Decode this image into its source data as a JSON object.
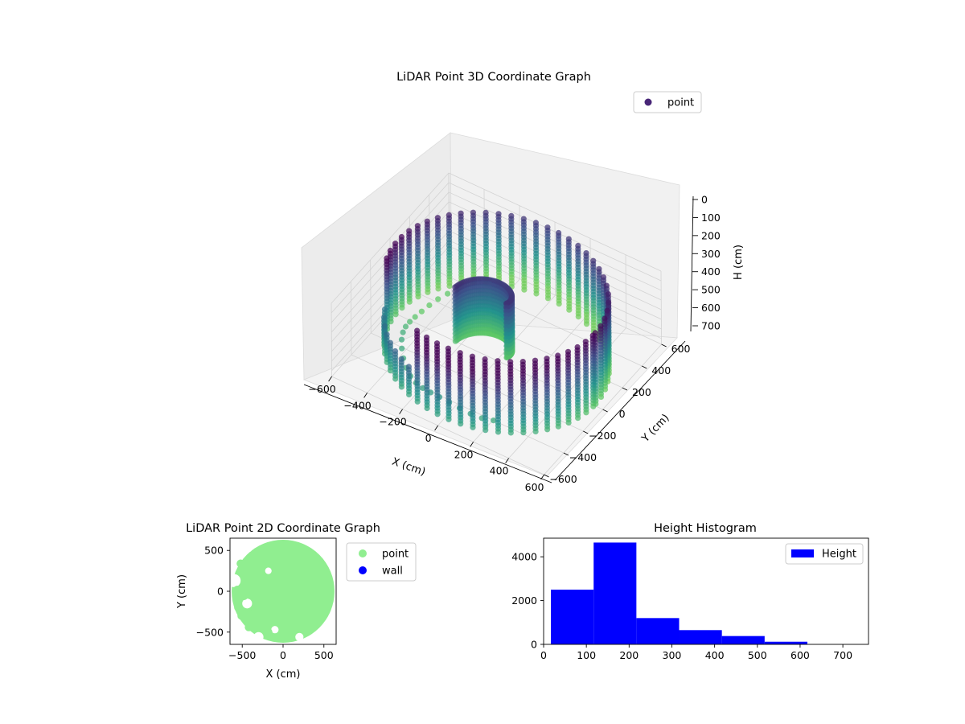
{
  "chart_data": [
    {
      "type": "scatter",
      "projection": "3d",
      "title": "LiDAR Point 3D Coordinate Graph",
      "xlabel": "X (cm)",
      "ylabel": "Y (cm)",
      "zlabel": "H (cm)",
      "xticks": [
        -600,
        -400,
        -200,
        0,
        200,
        400,
        600
      ],
      "yticks": [
        -600,
        -400,
        -200,
        0,
        200,
        400,
        600
      ],
      "zticks": [
        0,
        100,
        200,
        300,
        400,
        500,
        600,
        700
      ],
      "xlim": [
        -600,
        600
      ],
      "ylim": [
        -600,
        600
      ],
      "zlim": [
        0,
        760
      ],
      "z_inverted": true,
      "legend": {
        "placement": "top-right",
        "entries": [
          {
            "label": "point",
            "color": "#482677"
          }
        ]
      },
      "series": [
        {
          "name": "point",
          "colormap": "viridis",
          "ring_radius": 560,
          "ring_height_range": [
            0,
            760
          ],
          "inner_arc": {
            "radius_range": [
              50,
              220
            ],
            "height_range": [
              150,
              740
            ]
          }
        }
      ],
      "grid": true
    },
    {
      "type": "scatter",
      "title": "LiDAR Point 2D Coordinate Graph",
      "xlabel": "X (cm)",
      "ylabel": "Y (cm)",
      "xticks": [
        -500,
        0,
        500
      ],
      "yticks": [
        -500,
        0,
        500
      ],
      "xlim": [
        -650,
        650
      ],
      "ylim": [
        -650,
        650
      ],
      "legend": {
        "placement": "outside-right",
        "entries": [
          {
            "label": "point",
            "color": "#90ee90"
          },
          {
            "label": "wall",
            "color": "#0000ff"
          }
        ]
      },
      "series": [
        {
          "name": "point",
          "color": "#90ee90",
          "disk_radius": 630
        },
        {
          "name": "wall",
          "color": "#0000ff",
          "values": []
        }
      ]
    },
    {
      "type": "bar",
      "histogram": true,
      "title": "Height Histogram",
      "xlabel": "",
      "ylabel": "",
      "xticks": [
        0,
        100,
        200,
        300,
        400,
        500,
        600,
        700
      ],
      "yticks": [
        0,
        2000,
        4000
      ],
      "xlim": [
        0,
        760
      ],
      "ylim": [
        0,
        4850
      ],
      "bins": [
        {
          "x0": 17,
          "x1": 117,
          "value": 2500
        },
        {
          "x0": 117,
          "x1": 217,
          "value": 4650
        },
        {
          "x0": 217,
          "x1": 317,
          "value": 1200
        },
        {
          "x0": 317,
          "x1": 417,
          "value": 650
        },
        {
          "x0": 417,
          "x1": 517,
          "value": 380
        },
        {
          "x0": 517,
          "x1": 617,
          "value": 120
        },
        {
          "x0": 617,
          "x1": 717,
          "value": 0
        }
      ],
      "color": "#0000ff",
      "legend": {
        "placement": "top-right",
        "entries": [
          {
            "label": "Height",
            "color": "#0000ff"
          }
        ]
      }
    }
  ]
}
